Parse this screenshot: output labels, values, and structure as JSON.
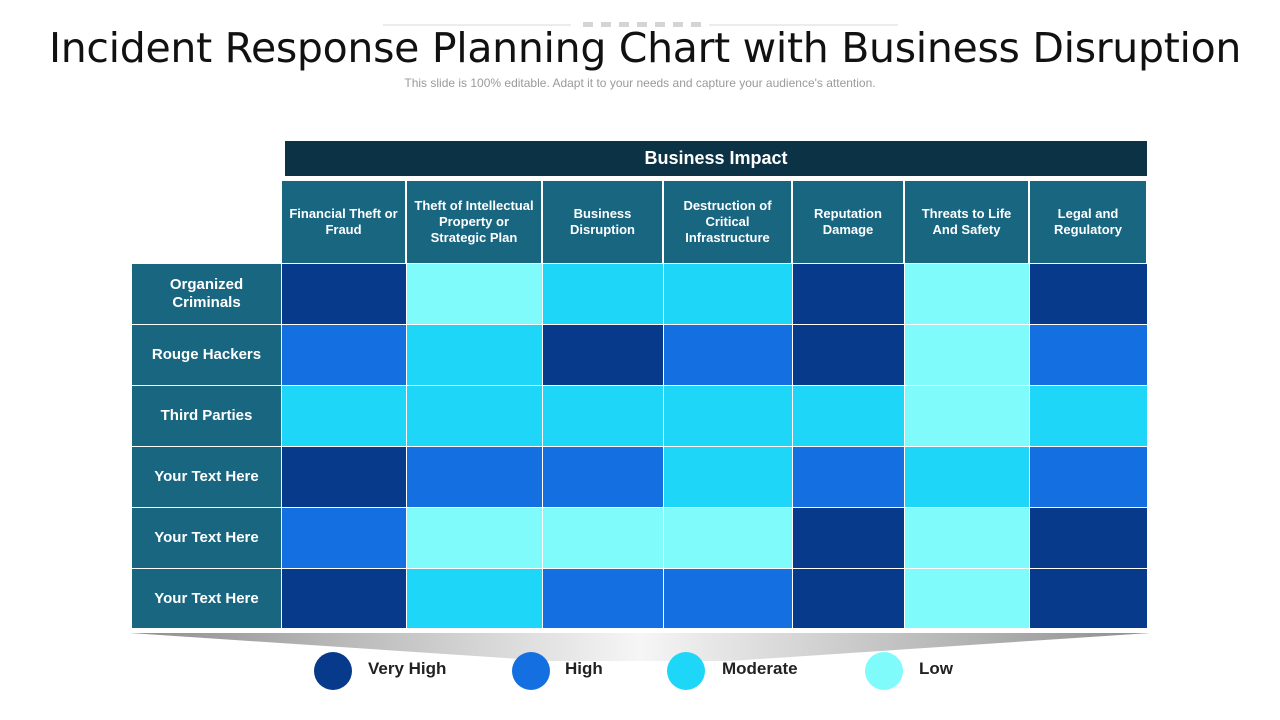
{
  "title": "Incident Response Planning Chart with Business Disruption",
  "subtitle": "This slide is 100% editable. Adapt it to your needs and capture your audience's attention.",
  "colors": {
    "very_high": "#073a8b",
    "high": "#1470e0",
    "moderate": "#1ed6f7",
    "low": "#80fbfb",
    "header": "#186680",
    "header_dark": "#0b3345"
  },
  "chart_data": {
    "type": "heatmap",
    "header": "Business Impact",
    "columns": [
      "Financial Theft or Fraud",
      "Theft of Intellectual Property or Strategic Plan",
      "Business Disruption",
      "Destruction  of Critical Infrastructure",
      "Reputation Damage",
      "Threats to Life And  Safety",
      "Legal and Regulatory"
    ],
    "rows": [
      {
        "label": "Organized Criminals",
        "levels": [
          "Very High",
          "Low",
          "Moderate",
          "Moderate",
          "Very High",
          "Low",
          "Very High"
        ]
      },
      {
        "label": "Rouge Hackers",
        "levels": [
          "High",
          "Moderate",
          "Very High",
          "High",
          "Very High",
          "Low",
          "High"
        ]
      },
      {
        "label": "Third Parties",
        "levels": [
          "Moderate",
          "Moderate",
          "Moderate",
          "Moderate",
          "Moderate",
          "Low",
          "Moderate"
        ]
      },
      {
        "label": "Your Text Here",
        "levels": [
          "Very High",
          "High",
          "High",
          "Moderate",
          "High",
          "Moderate",
          "High"
        ]
      },
      {
        "label": "Your Text Here",
        "levels": [
          "High",
          "Low",
          "Low",
          "Low",
          "Very High",
          "Low",
          "Very High"
        ]
      },
      {
        "label": "Your Text Here",
        "levels": [
          "Very High",
          "Moderate",
          "High",
          "High",
          "Very High",
          "Low",
          "Very High"
        ]
      }
    ],
    "legend": [
      "Very High",
      "High",
      "Moderate",
      "Low"
    ]
  }
}
